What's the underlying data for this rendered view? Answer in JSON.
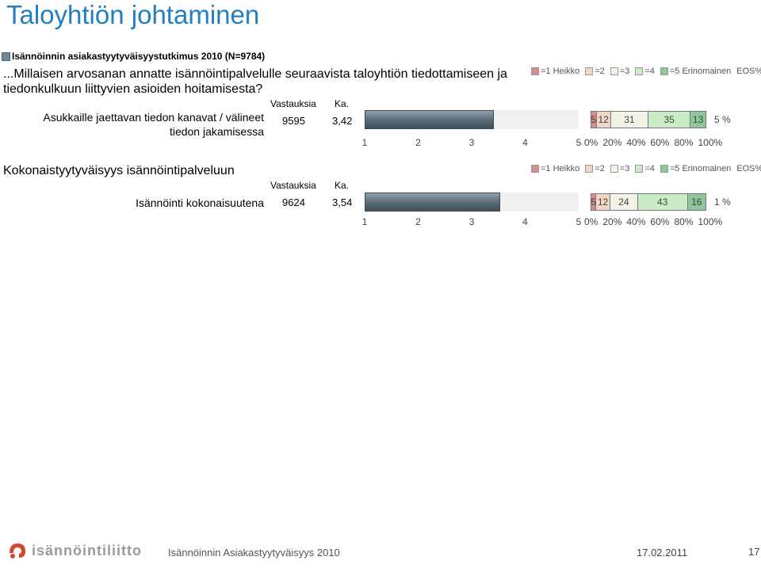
{
  "slide_title": "Taloyhtiön johtaminen",
  "survey_label": "Isännöinnin asiakastyytyväisyystutkimus 2010 (N=9784)",
  "question": "...Millaisen arvosanan annatte isännöintipalvelulle seuraavista taloyhtiön tiedottamiseen ja tiedonkulkuun liittyvien asioiden hoitamisesta?",
  "column_headers": {
    "responses": "Vastauksia",
    "average": "Ka."
  },
  "section2_title": "Kokonaistyytyväisyys isännöintipalveluun",
  "legend": {
    "items": [
      {
        "label": "=1 Heikko",
        "color": "#d98c8c"
      },
      {
        "label": "=2",
        "color": "#f0d6c4"
      },
      {
        "label": "=3",
        "color": "#f2f2e6"
      },
      {
        "label": "=4",
        "color": "#c9ecc5"
      },
      {
        "label": "=5 Erinomainen",
        "color": "#8ec79a"
      }
    ],
    "eos_label": "EOS%"
  },
  "avg_axis_ticks": [
    "1",
    "2",
    "3",
    "4",
    "5"
  ],
  "pct_axis_ticks": [
    "0%",
    "20%",
    "40%",
    "60%",
    "80%",
    "100%"
  ],
  "chart_data": [
    {
      "type": "bar",
      "label": "Asukkaille jaettavan tiedon kanavat / välineet tiedon jakamisessa",
      "responses": "9595",
      "average_text": "3,42",
      "average": 3.42,
      "xlim": [
        1,
        5
      ],
      "distribution": [
        5,
        12,
        31,
        35,
        13
      ],
      "distribution_labels": [
        "5",
        "12",
        "31",
        "35",
        "13"
      ],
      "eos": "5 %"
    },
    {
      "type": "bar",
      "label": "Isännöinti kokonaisuutena",
      "responses": "9624",
      "average_text": "3,54",
      "average": 3.54,
      "xlim": [
        1,
        5
      ],
      "distribution": [
        5,
        12,
        24,
        43,
        16
      ],
      "distribution_labels": [
        "5",
        "12",
        "24",
        "43",
        "16"
      ],
      "eos": "1 %"
    }
  ],
  "footer": {
    "logo_text": "isännöintiliitto",
    "text": "Isännöinnin Asiakastyytyväisyys 2010",
    "date": "17.02.2011",
    "page": "17"
  }
}
